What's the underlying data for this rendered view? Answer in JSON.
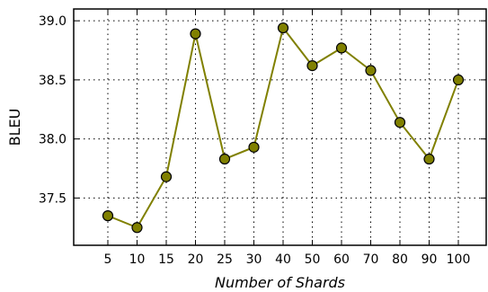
{
  "chart_data": {
    "type": "line",
    "title": "",
    "xlabel": "Number of Shards",
    "ylabel": "BLEU",
    "categories": [
      "5",
      "10",
      "15",
      "20",
      "25",
      "30",
      "40",
      "50",
      "60",
      "70",
      "80",
      "90",
      "100"
    ],
    "series": [
      {
        "values": [
          37.35,
          37.25,
          37.68,
          38.89,
          37.83,
          37.93,
          38.94,
          38.62,
          38.77,
          38.58,
          38.14,
          37.83,
          38.5
        ]
      }
    ],
    "ylim": [
      37.1,
      39.1
    ],
    "yticks": [
      37.5,
      38.0,
      38.5,
      39.0
    ],
    "ytick_labels": [
      "37.5",
      "38.0",
      "38.5",
      "39.0"
    ],
    "grid": true,
    "grid_style": "dotted",
    "legend": "none",
    "colors": {
      "line": "#808000",
      "marker_fill": "#808000",
      "marker_edge": "#000000",
      "grid": "#000000",
      "frame": "#000000"
    }
  }
}
